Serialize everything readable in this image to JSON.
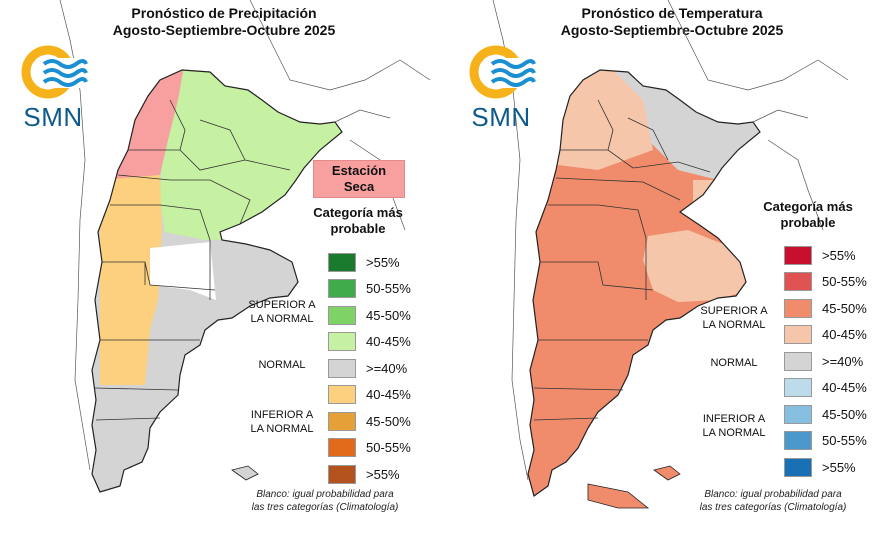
{
  "precipitation": {
    "title_line1": "Pronóstico de Precipitación",
    "title_line2": "Agosto-Septiembre-Octubre 2025",
    "logo_text": "SMN",
    "season_box_line1": "Estación",
    "season_box_line2": "Seca",
    "legend_title_line1": "Categoría más",
    "legend_title_line2": "probable",
    "legend": [
      {
        "label": ">55%",
        "color": "#1a7a2e"
      },
      {
        "label": "50-55%",
        "color": "#3fab4a"
      },
      {
        "label": "45-50%",
        "color": "#7fd265"
      },
      {
        "label": "40-45%",
        "color": "#c6f0a2"
      },
      {
        "label": ">=40%",
        "color": "#d4d4d4"
      },
      {
        "label": "40-45%",
        "color": "#fcd07e"
      },
      {
        "label": "45-50%",
        "color": "#e6a038"
      },
      {
        "label": "50-55%",
        "color": "#e06a1a"
      },
      {
        "label": ">55%",
        "color": "#b4521e"
      }
    ],
    "superior_line1": "SUPERIOR A",
    "superior_line2": "LA NORMAL",
    "normal": "NORMAL",
    "inferior_line1": "INFERIOR A",
    "inferior_line2": "LA NORMAL",
    "footnote_line1": "Blanco: igual probabilidad para",
    "footnote_line2": "las tres categorías (Climatología)"
  },
  "temperature": {
    "title_line1": "Pronóstico de Temperatura",
    "title_line2": "Agosto-Septiembre-Octubre 2025",
    "logo_text": "SMN",
    "legend_title_line1": "Categoría más",
    "legend_title_line2": "probable",
    "legend": [
      {
        "label": ">55%",
        "color": "#c8102e"
      },
      {
        "label": "50-55%",
        "color": "#e15252"
      },
      {
        "label": "45-50%",
        "color": "#f08c6c"
      },
      {
        "label": "40-45%",
        "color": "#f6c6aa"
      },
      {
        "label": ">=40%",
        "color": "#d4d4d4"
      },
      {
        "label": "40-45%",
        "color": "#bcdcec"
      },
      {
        "label": "45-50%",
        "color": "#86bee0"
      },
      {
        "label": "50-55%",
        "color": "#4a98cc"
      },
      {
        "label": ">55%",
        "color": "#1a70b4"
      }
    ],
    "superior_line1": "SUPERIOR A",
    "superior_line2": "LA NORMAL",
    "normal": "NORMAL",
    "inferior_line1": "INFERIOR A",
    "inferior_line2": "LA NORMAL",
    "footnote_line1": "Blanco: igual probabilidad para",
    "footnote_line2": "las tres categorías (Climatología)"
  },
  "colors": {
    "logo_sun": "#f5b21a",
    "logo_waves": "#1a8fd1",
    "logo_text": "#0f5a8c",
    "border": "#222222"
  },
  "icons": [
    "smn-logo-icon"
  ]
}
